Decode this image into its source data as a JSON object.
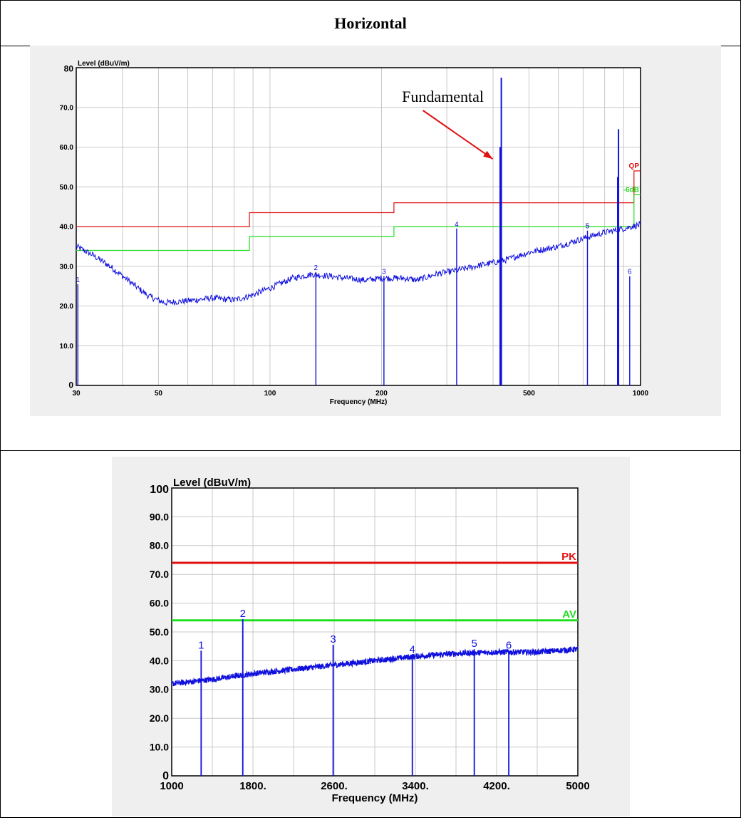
{
  "page": {
    "heading": "Horizontal"
  },
  "chart_data": [
    {
      "type": "line",
      "scale": "log-x",
      "ylabel": "Level (dBuV/m)",
      "xlabel": "Frequency (MHz)",
      "xlim": [
        30,
        1000
      ],
      "ylim": [
        0,
        80
      ],
      "y_ticks": [
        "0",
        "10.0",
        "20.0",
        "30.0",
        "40.0",
        "50.0",
        "60.0",
        "70.0",
        "80"
      ],
      "x_ticks": [
        {
          "value": 30,
          "label": "30"
        },
        {
          "value": 50,
          "label": "50"
        },
        {
          "value": 100,
          "label": "100"
        },
        {
          "value": 200,
          "label": "200"
        },
        {
          "value": 500,
          "label": "500"
        },
        {
          "value": 1000,
          "label": "1000"
        }
      ],
      "limit_lines": [
        {
          "name": "QP",
          "color": "#e01010",
          "points": [
            [
              30,
              40
            ],
            [
              88,
              40
            ],
            [
              88,
              43.5
            ],
            [
              216,
              43.5
            ],
            [
              216,
              46
            ],
            [
              960,
              46
            ],
            [
              960,
              54
            ],
            [
              1000,
              54
            ]
          ]
        },
        {
          "name": "-6dB",
          "color": "#22dd22",
          "points": [
            [
              30,
              34
            ],
            [
              88,
              34
            ],
            [
              88,
              37.5
            ],
            [
              216,
              37.5
            ],
            [
              216,
              40
            ],
            [
              960,
              40
            ],
            [
              960,
              48
            ],
            [
              1000,
              48
            ]
          ]
        }
      ],
      "series": [
        {
          "color": "#1010dd",
          "values": [
            [
              30,
              35
            ],
            [
              33,
              33
            ],
            [
              37,
              30
            ],
            [
              42,
              26
            ],
            [
              47,
              22.5
            ],
            [
              52,
              20.8
            ],
            [
              60,
              21.3
            ],
            [
              70,
              22
            ],
            [
              80,
              21.5
            ],
            [
              88,
              22.5
            ],
            [
              100,
              24.5
            ],
            [
              115,
              27
            ],
            [
              130,
              28
            ],
            [
              145,
              27.5
            ],
            [
              160,
              27
            ],
            [
              180,
              26.5
            ],
            [
              200,
              27
            ],
            [
              230,
              27
            ],
            [
              250,
              26.5
            ],
            [
              280,
              28
            ],
            [
              320,
              29
            ],
            [
              380,
              30.5
            ],
            [
              430,
              31.5
            ],
            [
              500,
              33.5
            ],
            [
              600,
              35
            ],
            [
              700,
              37
            ],
            [
              800,
              38.5
            ],
            [
              900,
              39.5
            ],
            [
              1000,
              40.5
            ]
          ]
        }
      ],
      "peaks": [
        {
          "x": 421,
          "y": 77.5
        },
        {
          "x": 418,
          "y": 60
        },
        {
          "x": 872,
          "y": 64.5
        },
        {
          "x": 868,
          "y": 52.5
        }
      ],
      "markers": [
        {
          "label": "1",
          "x": 30.3,
          "y": 25.5
        },
        {
          "label": "2",
          "x": 133,
          "y": 28.5
        },
        {
          "label": "3",
          "x": 203,
          "y": 27.5
        },
        {
          "label": "4",
          "x": 319,
          "y": 39.5
        },
        {
          "label": "5",
          "x": 719,
          "y": 39
        },
        {
          "label": "6",
          "x": 935,
          "y": 27.5
        }
      ],
      "annotation": {
        "text": "Fundamental",
        "target_x": 421,
        "target_y": 57
      }
    },
    {
      "type": "line",
      "ylabel": "Level (dBuV/m)",
      "xlabel": "Frequency (MHz)",
      "xlim": [
        1000,
        5000
      ],
      "ylim": [
        0,
        100
      ],
      "y_ticks": [
        "0",
        "10.0",
        "20.0",
        "30.0",
        "40.0",
        "50.0",
        "60.0",
        "70.0",
        "80.0",
        "90.0",
        "100"
      ],
      "x_ticks": [
        {
          "value": 1000,
          "label": "1000"
        },
        {
          "value": 1800,
          "label": "1800."
        },
        {
          "value": 2600,
          "label": "2600."
        },
        {
          "value": 3400,
          "label": "3400."
        },
        {
          "value": 4200,
          "label": "4200."
        },
        {
          "value": 5000,
          "label": "5000"
        }
      ],
      "limit_lines": [
        {
          "name": "PK",
          "color": "#e01010",
          "points": [
            [
              1000,
              74
            ],
            [
              5000,
              74
            ]
          ]
        },
        {
          "name": "AV",
          "color": "#22dd22",
          "points": [
            [
              1000,
              54
            ],
            [
              5000,
              54
            ]
          ]
        }
      ],
      "series": [
        {
          "color": "#1010dd",
          "values": [
            [
              1000,
              32
            ],
            [
              1400,
              33.5
            ],
            [
              1800,
              35.5
            ],
            [
              2200,
              37
            ],
            [
              2600,
              38.5
            ],
            [
              3000,
              40
            ],
            [
              3400,
              41.5
            ],
            [
              3800,
              42.5
            ],
            [
              4200,
              43
            ],
            [
              4600,
              43
            ],
            [
              5000,
              44
            ]
          ]
        }
      ],
      "peaks": [],
      "markers": [
        {
          "label": "1",
          "x": 1290,
          "y": 43.5
        },
        {
          "label": "2",
          "x": 1700,
          "y": 54.5
        },
        {
          "label": "3",
          "x": 2590,
          "y": 45.5
        },
        {
          "label": "4",
          "x": 3370,
          "y": 42
        },
        {
          "label": "5",
          "x": 3980,
          "y": 44
        },
        {
          "label": "6",
          "x": 4320,
          "y": 43.5
        }
      ],
      "annotation": null
    }
  ]
}
